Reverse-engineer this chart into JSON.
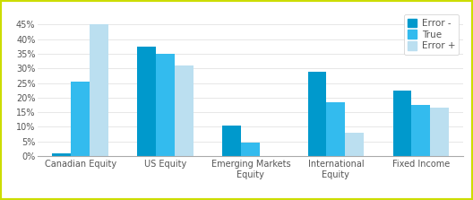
{
  "categories": [
    "Canadian Equity",
    "US Equity",
    "Emerging Markets\nEquity",
    "International\nEquity",
    "Fixed Income"
  ],
  "series": {
    "Error -": [
      0.01,
      0.375,
      0.105,
      0.29,
      0.225
    ],
    "True": [
      0.255,
      0.35,
      0.045,
      0.185,
      0.175
    ],
    "Error +": [
      0.45,
      0.31,
      0.0,
      0.08,
      0.165
    ]
  },
  "colors": {
    "Error -": "#0099CC",
    "True": "#33BBEE",
    "Error +": "#BBDFF0"
  },
  "ylim": [
    0,
    0.5
  ],
  "yticks": [
    0.0,
    0.05,
    0.1,
    0.15,
    0.2,
    0.25,
    0.3,
    0.35,
    0.4,
    0.45
  ],
  "yticklabels": [
    "0%",
    "5%",
    "10%",
    "15%",
    "20%",
    "25%",
    "30%",
    "35%",
    "40%",
    "45%"
  ],
  "legend_labels": [
    "Error -",
    "True",
    "Error +"
  ],
  "bar_width": 0.22,
  "background_color": "#ffffff",
  "border_color": "#CCDD00",
  "border_width": 3
}
